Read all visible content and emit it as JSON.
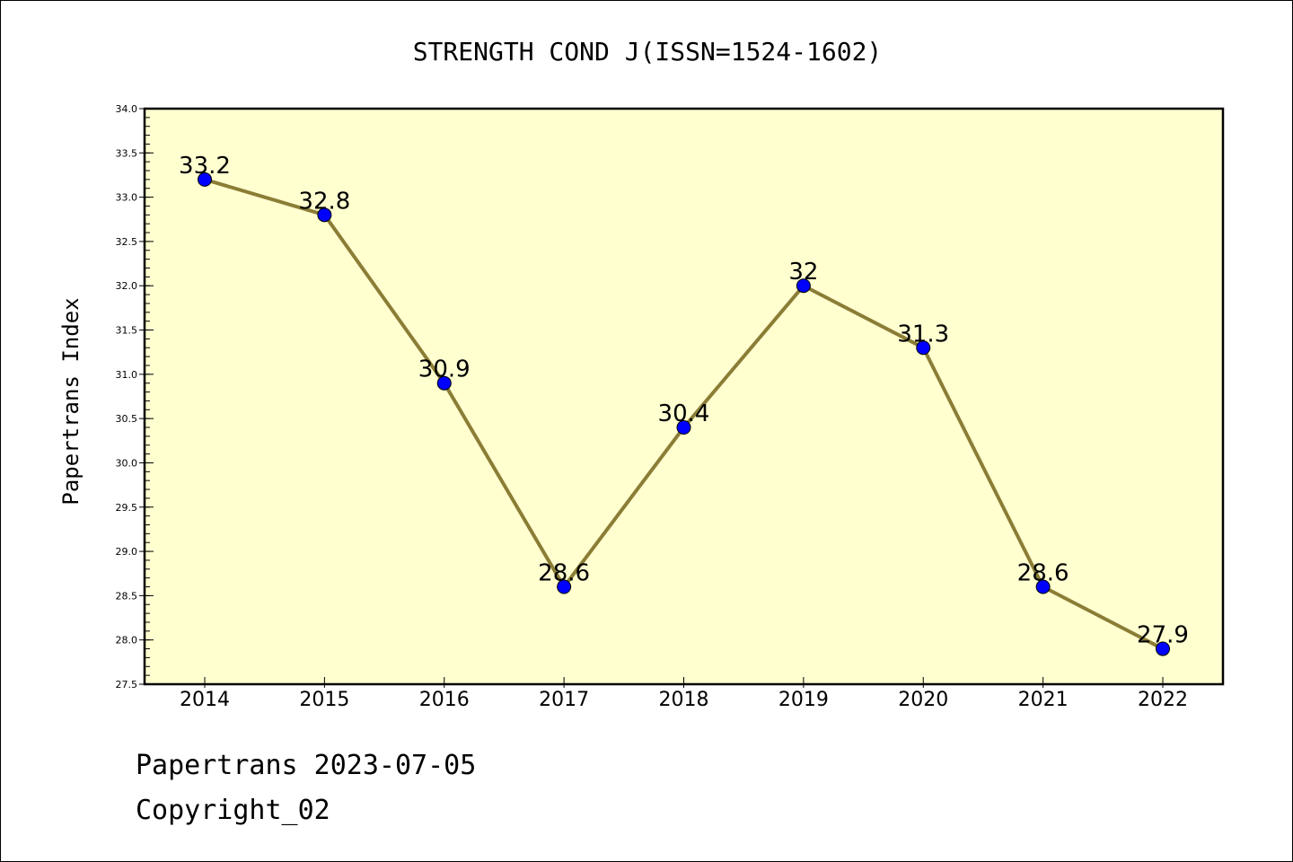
{
  "chart_data": {
    "type": "line",
    "title": "STRENGTH COND J(ISSN=1524-1602)",
    "xlabel": "",
    "ylabel": "Papertrans Index",
    "categories": [
      "2014",
      "2015",
      "2016",
      "2017",
      "2018",
      "2019",
      "2020",
      "2021",
      "2022"
    ],
    "series": [
      {
        "values": [
          33.2,
          32.8,
          30.9,
          28.6,
          30.4,
          32,
          31.3,
          28.6,
          27.9
        ],
        "labels": [
          "33.2",
          "32.8",
          "30.9",
          "28.6",
          "30.4",
          "32",
          "31.3",
          "28.6",
          "27.9"
        ]
      }
    ],
    "ylim": [
      27.5,
      34.0
    ],
    "yticks": [
      "27.5",
      "28.0",
      "28.5",
      "29.0",
      "29.5",
      "30.0",
      "30.5",
      "31.0",
      "31.5",
      "32.0",
      "32.5",
      "33.0",
      "33.5",
      "34.0"
    ],
    "grid": false,
    "legend": "none",
    "colors": {
      "plot_background": "#ffffd0",
      "line": "#8b7d35",
      "marker": "#0000ff"
    }
  },
  "footer": {
    "line1": "Papertrans 2023-07-05",
    "line2": "Copyright_02"
  }
}
